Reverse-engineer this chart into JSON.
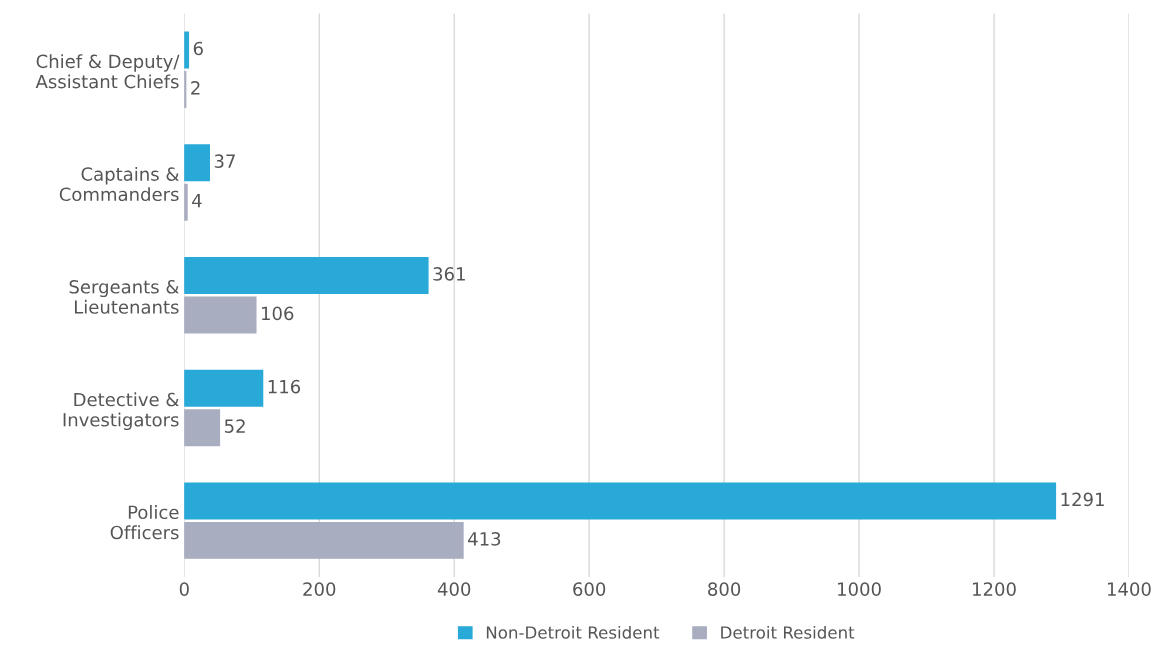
{
  "chart_data": {
    "type": "bar",
    "orientation": "horizontal",
    "categories": [
      "Chief & Deputy/\nAssistant Chiefs",
      "Captains &\nCommanders",
      "Sergeants &\nLieutenants",
      "Detective &\nInvestigators",
      "Police\nOfficers"
    ],
    "series": [
      {
        "name": "Non-Detroit Resident",
        "color": "#29a9d8",
        "values": [
          6,
          37,
          361,
          116,
          1291
        ]
      },
      {
        "name": "Detroit Resident",
        "color": "#a9adc0",
        "values": [
          2,
          4,
          106,
          52,
          413
        ]
      }
    ],
    "xlim": [
      0,
      1400
    ],
    "xticks": [
      0,
      200,
      400,
      600,
      800,
      1000,
      1200,
      1400
    ],
    "grid": "x",
    "legend": "bottom",
    "data_labels": true
  }
}
